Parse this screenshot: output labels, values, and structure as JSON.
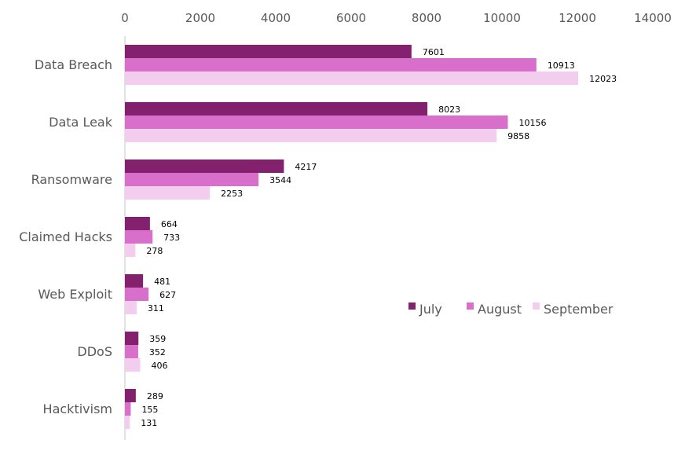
{
  "chart_data": {
    "type": "bar",
    "orientation": "horizontal",
    "title": "",
    "xlabel": "",
    "ylabel": "",
    "xlim": [
      0,
      14000
    ],
    "x_ticks": [
      "0",
      "2000",
      "4000",
      "6000",
      "8000",
      "10000",
      "12000",
      "14000"
    ],
    "categories": [
      "Data Breach",
      "Data Leak",
      "Ransomware",
      "Claimed Hacks",
      "Web Exploit",
      "DDoS",
      "Hacktivism"
    ],
    "series": [
      {
        "name": "July",
        "color": "#84216f",
        "values": [
          7601,
          8023,
          4217,
          664,
          481,
          359,
          289
        ]
      },
      {
        "name": "August",
        "color": "#d76fcb",
        "values": [
          10913,
          10156,
          3544,
          733,
          627,
          352,
          155
        ]
      },
      {
        "name": "September",
        "color": "#f2cdee",
        "values": [
          12023,
          9858,
          2253,
          278,
          311,
          406,
          131
        ]
      }
    ],
    "grid": false,
    "legend_position": "right-middle"
  }
}
